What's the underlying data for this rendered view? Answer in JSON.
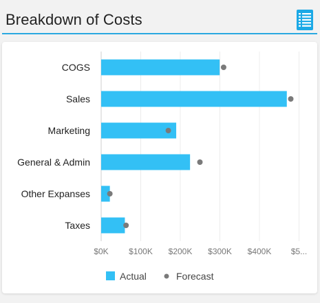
{
  "title": "Breakdown of Costs",
  "menu_icon": "list-menu-icon",
  "colors": {
    "accent": "#29a8e0",
    "actual": "#33c0f5",
    "forecast": "#7a7a7a"
  },
  "chart_data": {
    "type": "bar",
    "orientation": "horizontal",
    "categories": [
      "COGS",
      "Sales",
      "Marketing",
      "General & Admin",
      "Other Expanses",
      "Taxes"
    ],
    "series": [
      {
        "name": "Actual",
        "values": [
          300000,
          470000,
          190000,
          225000,
          22000,
          60000
        ]
      },
      {
        "name": "Forecast",
        "values": [
          310000,
          480000,
          170000,
          250000,
          22000,
          63000
        ]
      }
    ],
    "xlim": [
      0,
      500000
    ],
    "x_ticks": [
      "$0K",
      "$100K",
      "$200K",
      "$300K",
      "$400K",
      "$5..."
    ],
    "grid": true,
    "legend_position": "bottom"
  }
}
